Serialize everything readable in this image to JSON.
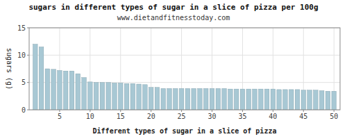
{
  "chart_data": {
    "type": "bar",
    "title": "sugars in different types of sugar in a slice of pizza per 100g",
    "subtitle": "www.dietandfitnesstoday.com",
    "xlabel": "Different types of sugar in a slice of pizza",
    "ylabel": "sugars (g)",
    "x": [
      1,
      2,
      3,
      4,
      5,
      6,
      7,
      8,
      9,
      10,
      11,
      12,
      13,
      14,
      15,
      16,
      17,
      18,
      19,
      20,
      21,
      22,
      23,
      24,
      25,
      26,
      27,
      28,
      29,
      30,
      31,
      32,
      33,
      34,
      35,
      36,
      37,
      38,
      39,
      40,
      41,
      42,
      43,
      44,
      45,
      46,
      47,
      48,
      49,
      50
    ],
    "values": [
      12.0,
      11.5,
      7.5,
      7.4,
      7.2,
      7.1,
      7.1,
      6.6,
      5.9,
      5.1,
      5.0,
      5.0,
      5.0,
      4.9,
      4.9,
      4.8,
      4.8,
      4.7,
      4.6,
      4.1,
      4.1,
      3.9,
      3.9,
      3.9,
      3.9,
      3.9,
      3.9,
      3.9,
      3.9,
      3.9,
      3.9,
      3.9,
      3.8,
      3.8,
      3.8,
      3.8,
      3.8,
      3.8,
      3.8,
      3.8,
      3.7,
      3.7,
      3.7,
      3.7,
      3.6,
      3.6,
      3.6,
      3.5,
      3.4,
      3.4
    ],
    "color": "#a8c8d4",
    "xlim": [
      0.0,
      51
    ],
    "xticks": [
      5,
      10,
      15,
      20,
      25,
      30,
      35,
      40,
      45,
      50
    ],
    "ylim": [
      0,
      15
    ],
    "yticks": [
      0,
      5,
      10,
      15
    ],
    "grid": true
  }
}
